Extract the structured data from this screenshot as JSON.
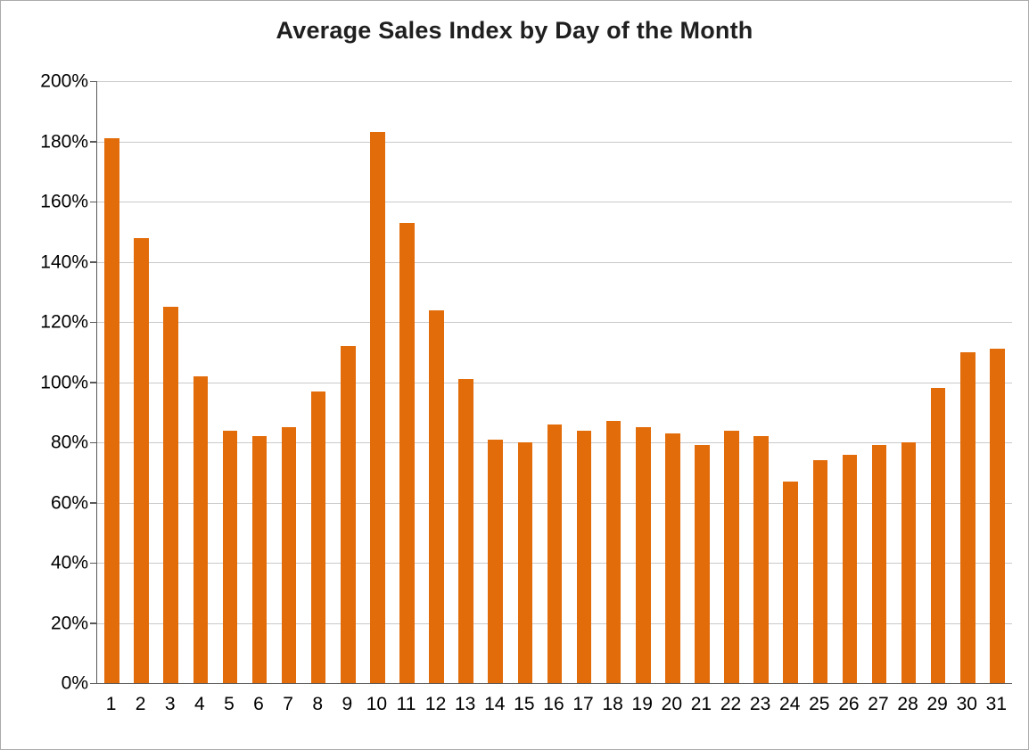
{
  "chart_data": {
    "type": "bar",
    "title": "Average Sales Index by Day of the Month",
    "xlabel": "",
    "ylabel": "",
    "categories": [
      "1",
      "2",
      "3",
      "4",
      "5",
      "6",
      "7",
      "8",
      "9",
      "10",
      "11",
      "12",
      "13",
      "14",
      "15",
      "16",
      "17",
      "18",
      "19",
      "20",
      "21",
      "22",
      "23",
      "24",
      "25",
      "26",
      "27",
      "28",
      "29",
      "30",
      "31"
    ],
    "values": [
      181,
      148,
      125,
      102,
      84,
      82,
      85,
      97,
      112,
      183,
      153,
      124,
      101,
      81,
      80,
      86,
      84,
      87,
      85,
      83,
      79,
      84,
      82,
      67,
      74,
      76,
      79,
      80,
      98,
      110,
      111
    ],
    "ylim": [
      0,
      200
    ],
    "ytick_step": 20,
    "yticks": [
      "0%",
      "20%",
      "40%",
      "60%",
      "80%",
      "100%",
      "120%",
      "140%",
      "160%",
      "180%",
      "200%"
    ],
    "grid": true,
    "legend": "none",
    "bar_color": "#e36c0a",
    "gridline_color": "#c9c9c9",
    "axis_color": "#595959",
    "title_color": "#1f1f1f"
  }
}
